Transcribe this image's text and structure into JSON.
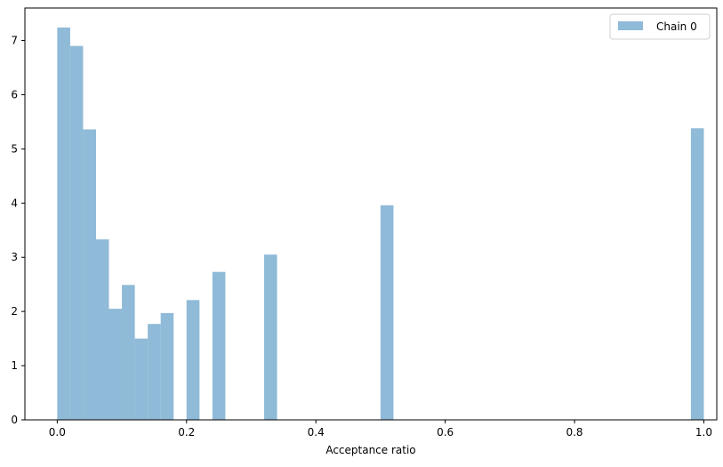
{
  "chart_data": {
    "type": "bar",
    "subtype": "histogram",
    "title": "",
    "xlabel": "Acceptance ratio",
    "ylabel": "",
    "xlim": [
      -0.05,
      1.02
    ],
    "ylim": [
      0,
      7.6
    ],
    "xticks": [
      0.0,
      0.2,
      0.4,
      0.6,
      0.8,
      1.0
    ],
    "xtick_labels": [
      "0.0",
      "0.2",
      "0.4",
      "0.6",
      "0.8",
      "1.0"
    ],
    "yticks": [
      0,
      1,
      2,
      3,
      4,
      5,
      6,
      7
    ],
    "ytick_labels": [
      "0",
      "1",
      "2",
      "3",
      "4",
      "5",
      "6",
      "7"
    ],
    "grid": false,
    "legend_position": "top-right",
    "bin_width": 0.02,
    "series": [
      {
        "name": "Chain 0",
        "color": "#8fbad8",
        "bins": [
          {
            "x0": 0.0,
            "height": 7.24
          },
          {
            "x0": 0.02,
            "height": 6.9
          },
          {
            "x0": 0.04,
            "height": 5.36
          },
          {
            "x0": 0.06,
            "height": 3.33
          },
          {
            "x0": 0.08,
            "height": 2.05
          },
          {
            "x0": 0.1,
            "height": 2.49
          },
          {
            "x0": 0.12,
            "height": 1.5
          },
          {
            "x0": 0.14,
            "height": 1.77
          },
          {
            "x0": 0.16,
            "height": 1.97
          },
          {
            "x0": 0.2,
            "height": 2.21
          },
          {
            "x0": 0.24,
            "height": 2.73
          },
          {
            "x0": 0.32,
            "height": 3.05
          },
          {
            "x0": 0.5,
            "height": 3.96
          },
          {
            "x0": 0.98,
            "height": 5.38
          }
        ]
      }
    ]
  }
}
